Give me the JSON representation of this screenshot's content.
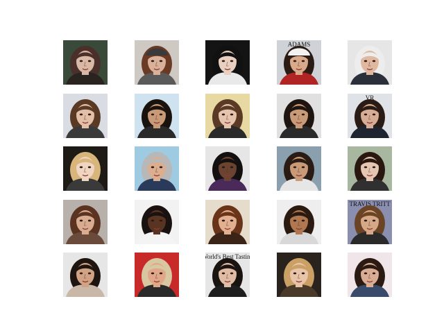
{
  "figure": {
    "rows": 5,
    "columns": 5,
    "background": "#ffffff"
  },
  "thumbnails": [
    {
      "subject": "portrait-dark-hair-pale-skin",
      "background": "#3a4a3a",
      "skin": "#d9b8a6",
      "hair": "#4a2f2a",
      "clothing": "#2a2420",
      "caption": ""
    },
    {
      "subject": "portrait-hat-long-auburn-hair",
      "background": "#cfc9c4",
      "skin": "#d9b09a",
      "hair": "#6b3a24",
      "clothing": "#5a5a5a",
      "hat": "#3a3a3a",
      "caption": ""
    },
    {
      "subject": "portrait-black-hair-dark-background",
      "background": "#141414",
      "skin": "#e8cfc0",
      "hair": "#111111",
      "clothing": "#e9e9e9",
      "caption": ""
    },
    {
      "subject": "portrait-white-cap-red-banner",
      "background": "#cfd2d6",
      "skin": "#d9a98a",
      "hair": "#2a1c14",
      "clothing": "#b12424",
      "hat": "#f2f2f2",
      "caption": "ADAMS"
    },
    {
      "subject": "portrait-white-hair-glasses",
      "background": "#e6e6e6",
      "skin": "#e0b8a0",
      "hair": "#ededed",
      "clothing": "#2b2f3a",
      "caption": ""
    },
    {
      "subject": "portrait-brown-hair-young-man",
      "background": "#d9dde3",
      "skin": "#e2bfa6",
      "hair": "#5a3a24",
      "clothing": "#3a3a3a",
      "caption": ""
    },
    {
      "subject": "portrait-dark-hair-smile",
      "background": "#cfe2ef",
      "skin": "#c99a78",
      "hair": "#1a120c",
      "clothing": "#2a2a2a",
      "caption": ""
    },
    {
      "subject": "portrait-short-brown-hair-yellow",
      "background": "#e8d8a2",
      "skin": "#e6c3ad",
      "hair": "#5a3a24",
      "clothing": "#2a2a2a",
      "caption": ""
    },
    {
      "subject": "portrait-man-dark-hair",
      "background": "#e0e0e0",
      "skin": "#c99a78",
      "hair": "#1e1410",
      "clothing": "#2a2a2a",
      "caption": ""
    },
    {
      "subject": "portrait-man-suit",
      "background": "#dfe2e6",
      "skin": "#d6ad94",
      "hair": "#2a1c14",
      "clothing": "#1f2530",
      "caption": "VR"
    },
    {
      "subject": "portrait-blonde-long-hair",
      "background": "#1e1a16",
      "skin": "#f0d6c2",
      "hair": "#d8b57a",
      "clothing": "#3a3a3a",
      "caption": ""
    },
    {
      "subject": "portrait-older-man-smile",
      "background": "#9fcbe2",
      "skin": "#dcae90",
      "hair": "#b8b8b8",
      "clothing": "#2a3a5a",
      "caption": ""
    },
    {
      "subject": "portrait-curly-dark-hair-smile",
      "background": "#e6e6e6",
      "skin": "#6a4430",
      "hair": "#151010",
      "clothing": "#4a2a5a",
      "caption": ""
    },
    {
      "subject": "portrait-headband-smile",
      "background": "#8aa0ae",
      "skin": "#c99a78",
      "hair": "#2a1c14",
      "clothing": "#e6e6e6",
      "caption": ""
    },
    {
      "subject": "portrait-dark-wavy-hair",
      "background": "#a8b8a0",
      "skin": "#e6c6b2",
      "hair": "#2a1810",
      "clothing": "#303030",
      "caption": ""
    },
    {
      "subject": "portrait-wavy-brown-hair",
      "background": "#b8b0aa",
      "skin": "#d9ac92",
      "hair": "#5a3420",
      "clothing": "#6a4a3a",
      "caption": ""
    },
    {
      "subject": "portrait-short-hair-smile",
      "background": "#f2f2f2",
      "skin": "#5a3422",
      "hair": "#1a1210",
      "clothing": "#f4f4f4",
      "caption": ""
    },
    {
      "subject": "portrait-vintage-curls",
      "background": "#e6dccb",
      "skin": "#e2b090",
      "hair": "#6a3418",
      "clothing": "#3a2418",
      "caption": ""
    },
    {
      "subject": "portrait-headpiece-earrings",
      "background": "#eeeeee",
      "skin": "#b07850",
      "hair": "#2a1a10",
      "clothing": "#d8d8d8",
      "caption": ""
    },
    {
      "subject": "portrait-long-hair-beard",
      "background": "#8a8fb0",
      "skin": "#d6a888",
      "hair": "#6a4424",
      "clothing": "#2a2a2a",
      "caption": "TRAVIS TRITT"
    },
    {
      "subject": "portrait-hand-in-hair",
      "background": "#e6e6e6",
      "skin": "#d2a284",
      "hair": "#1e1410",
      "clothing": "#c9b8a8",
      "caption": ""
    },
    {
      "subject": "portrait-spiky-blonde-hair",
      "background": "#c82a2a",
      "skin": "#e0a888",
      "hair": "#d8c8a2",
      "clothing": "#2a2a2a",
      "caption": ""
    },
    {
      "subject": "portrait-dark-bob-hair",
      "background": "#e6e6e6",
      "skin": "#e0bca4",
      "hair": "#1a1410",
      "clothing": "#1e1e1e",
      "caption": "World's Best Tasting"
    },
    {
      "subject": "portrait-blonde-wavy-hair",
      "background": "#2a221c",
      "skin": "#e8c4a8",
      "hair": "#caa064",
      "clothing": "#4a3a2a",
      "caption": ""
    },
    {
      "subject": "portrait-man-dark-hair-smile",
      "background": "#f0e6ea",
      "skin": "#d9ad94",
      "hair": "#2a1a12",
      "clothing": "#3a4a6a",
      "caption": ""
    }
  ]
}
